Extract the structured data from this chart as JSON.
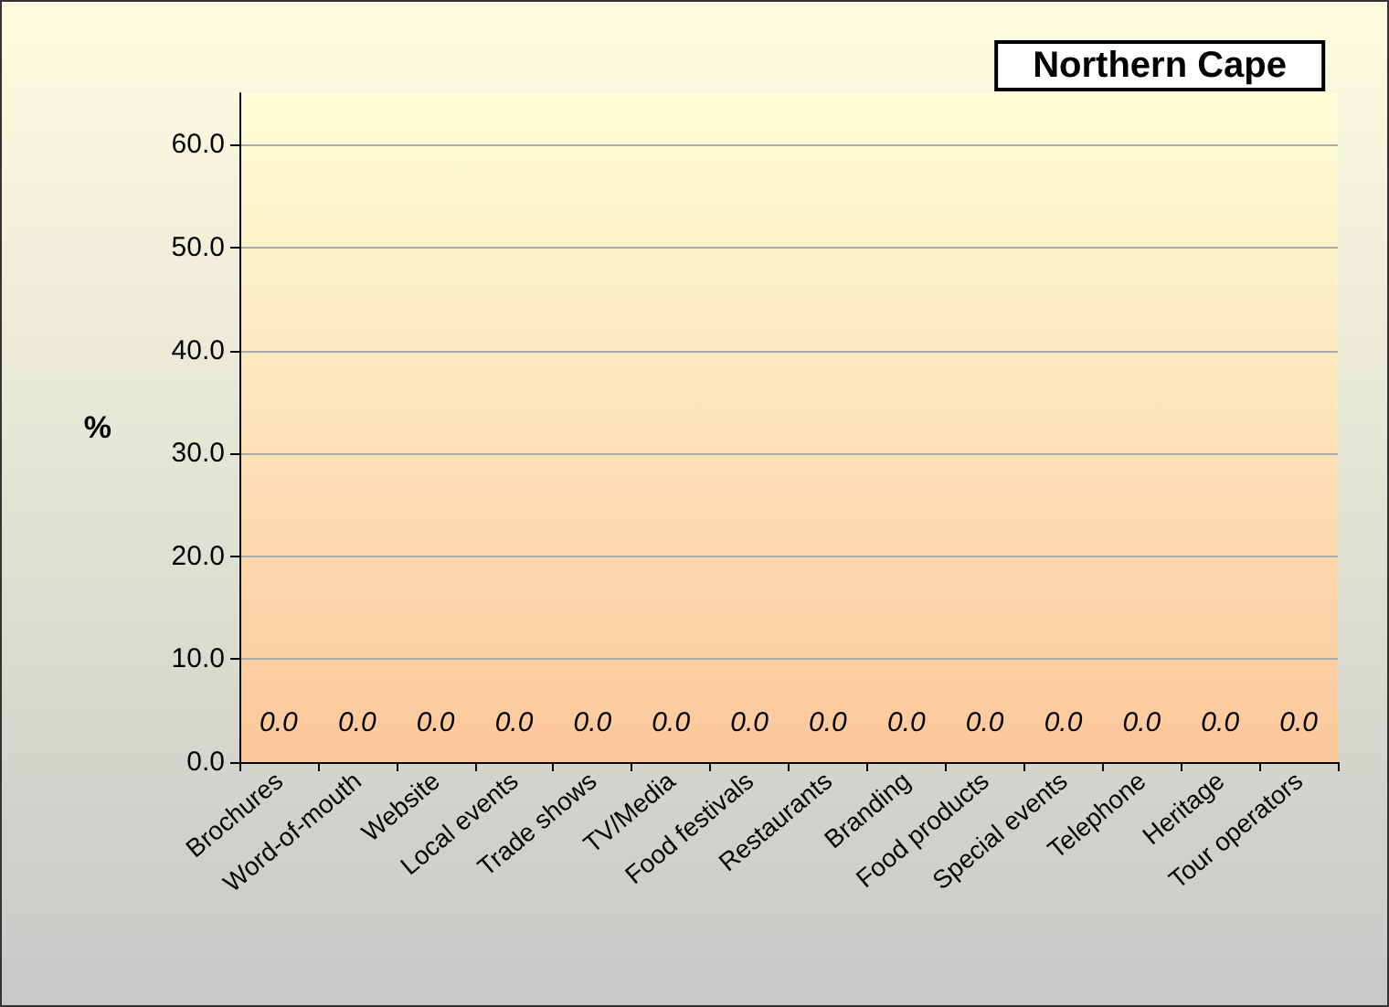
{
  "chart_data": {
    "type": "bar",
    "title": "Northern Cape",
    "ylabel": "%",
    "categories": [
      "Brochures",
      "Word-of-mouth",
      "Website",
      "Local events",
      "Trade shows",
      "TV/Media",
      "Food festivals",
      "Restaurants",
      "Branding",
      "Food products",
      "Special events",
      "Telephone",
      "Heritage",
      "Tour operators"
    ],
    "values": [
      0,
      0,
      0,
      0,
      0,
      0,
      0,
      0,
      0,
      0,
      0,
      0,
      0,
      0
    ],
    "value_labels": [
      "0.0",
      "0.0",
      "0.0",
      "0.0",
      "0.0",
      "0.0",
      "0.0",
      "0.0",
      "0.0",
      "0.0",
      "0.0",
      "0.0",
      "0.0",
      "0.0"
    ],
    "ylim": [
      0,
      65
    ],
    "yticks": [
      {
        "value": 0,
        "label": "0.0"
      },
      {
        "value": 10,
        "label": "10.0"
      },
      {
        "value": 20,
        "label": "20.0"
      },
      {
        "value": 30,
        "label": "30.0"
      },
      {
        "value": 40,
        "label": "40.0"
      },
      {
        "value": 50,
        "label": "50.0"
      },
      {
        "value": 60,
        "label": "60.0"
      }
    ],
    "grid": "y"
  }
}
